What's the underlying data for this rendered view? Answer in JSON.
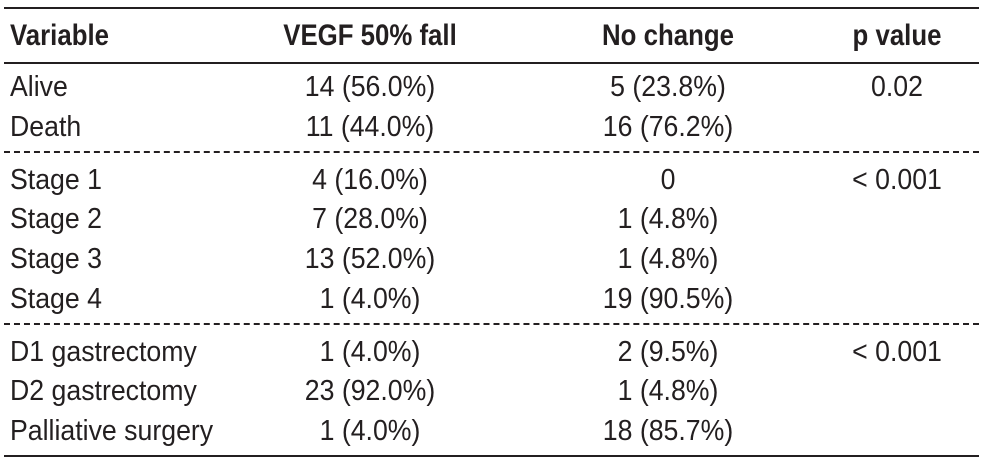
{
  "headers": [
    "Variable",
    "VEGF 50% fall",
    "No change",
    "p value"
  ],
  "groups": [
    {
      "rows": [
        [
          "Alive",
          "14 (56.0%)",
          "5 (23.8%)",
          "0.02"
        ],
        [
          "Death",
          "11 (44.0%)",
          "16 (76.2%)",
          ""
        ]
      ]
    },
    {
      "rows": [
        [
          "Stage 1",
          "4 (16.0%)",
          "0",
          "< 0.001"
        ],
        [
          "Stage 2",
          "7 (28.0%)",
          "1 (4.8%)",
          ""
        ],
        [
          "Stage 3",
          "13 (52.0%)",
          "1 (4.8%)",
          ""
        ],
        [
          "Stage 4",
          "1 (4.0%)",
          "19 (90.5%)",
          ""
        ]
      ]
    },
    {
      "rows": [
        [
          "D1 gastrectomy",
          "1 (4.0%)",
          "2 (9.5%)",
          "< 0.001"
        ],
        [
          "D2 gastrectomy",
          "23 (92.0%)",
          "1 (4.8%)",
          ""
        ],
        [
          "Palliative surgery",
          "1 (4.0%)",
          "18 (85.7%)",
          ""
        ]
      ]
    }
  ]
}
